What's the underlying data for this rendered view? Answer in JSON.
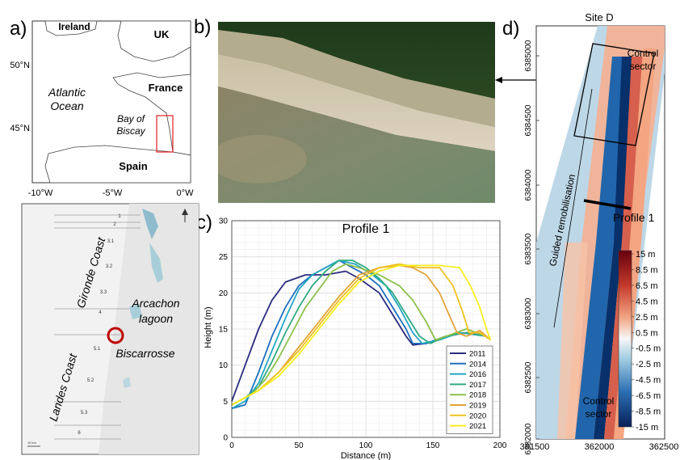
{
  "panels": {
    "a": "a)",
    "b": "b)",
    "c": "c)",
    "d": "d)"
  },
  "map_a": {
    "countries": [
      "Ireland",
      "UK",
      "France",
      "Spain"
    ],
    "sea": [
      "Atlantic",
      "Ocean"
    ],
    "bay": [
      "Bay of",
      "Biscay"
    ],
    "lat_ticks": [
      "50°N",
      "45°N"
    ],
    "lon_ticks": [
      "-10°W",
      "-5°W",
      "0°W"
    ]
  },
  "map_coast": {
    "gironde": "Gironde Coast",
    "landes": "Landes Coast",
    "lagoon": [
      "Arcachon",
      "lagoon"
    ],
    "site": "Biscarrosse",
    "sector_labels": [
      "1",
      "2",
      "3.1",
      "3.2",
      "3.3",
      "4",
      "5.1",
      "5.2",
      "5.3",
      "6"
    ],
    "scale": "10 km"
  },
  "chart_data": {
    "type": "line",
    "title": "Profile 1",
    "xlabel": "Distance (m)",
    "ylabel": "Height (m)",
    "xlim": [
      0,
      200
    ],
    "ylim": [
      0,
      30
    ],
    "xticks": [
      0,
      50,
      100,
      150,
      200
    ],
    "yticks": [
      0,
      5,
      10,
      15,
      20,
      25,
      30
    ],
    "grid": true,
    "legend_position": "bottom-right",
    "series": [
      {
        "name": "2011",
        "color": "#2b2c7d",
        "points": [
          [
            0,
            5
          ],
          [
            10,
            10
          ],
          [
            20,
            15
          ],
          [
            30,
            19
          ],
          [
            40,
            21.5
          ],
          [
            55,
            22.5
          ],
          [
            70,
            22.5
          ],
          [
            85,
            23
          ],
          [
            95,
            22
          ],
          [
            110,
            20
          ],
          [
            120,
            17
          ],
          [
            130,
            14
          ],
          [
            135,
            12.8
          ],
          [
            145,
            13
          ],
          [
            160,
            14
          ],
          [
            175,
            14.5
          ],
          [
            190,
            14
          ]
        ]
      },
      {
        "name": "2014",
        "color": "#1f6fbf",
        "points": [
          [
            0,
            4
          ],
          [
            10,
            4.5
          ],
          [
            20,
            9
          ],
          [
            30,
            14
          ],
          [
            40,
            18
          ],
          [
            50,
            21
          ],
          [
            60,
            22.5
          ],
          [
            70,
            23.5
          ],
          [
            80,
            24.5
          ],
          [
            90,
            23.5
          ],
          [
            100,
            22.5
          ],
          [
            110,
            21
          ],
          [
            120,
            18
          ],
          [
            130,
            15
          ],
          [
            135,
            13
          ],
          [
            145,
            13
          ],
          [
            160,
            14
          ],
          [
            175,
            14.5
          ],
          [
            190,
            14
          ]
        ]
      },
      {
        "name": "2016",
        "color": "#22a7c4",
        "points": [
          [
            0,
            4
          ],
          [
            10,
            5
          ],
          [
            20,
            7.5
          ],
          [
            30,
            12
          ],
          [
            40,
            16.5
          ],
          [
            50,
            20.5
          ],
          [
            60,
            22.5
          ],
          [
            70,
            23.5
          ],
          [
            80,
            24.5
          ],
          [
            92,
            24
          ],
          [
            105,
            22.5
          ],
          [
            115,
            21
          ],
          [
            125,
            18
          ],
          [
            135,
            14.5
          ],
          [
            142,
            13
          ],
          [
            155,
            13.5
          ],
          [
            170,
            14.5
          ],
          [
            190,
            14
          ]
        ]
      },
      {
        "name": "2017",
        "color": "#2faa83",
        "points": [
          [
            0,
            4.5
          ],
          [
            10,
            5.5
          ],
          [
            20,
            7
          ],
          [
            30,
            10.5
          ],
          [
            40,
            14.5
          ],
          [
            50,
            18
          ],
          [
            60,
            21
          ],
          [
            70,
            23
          ],
          [
            80,
            24.5
          ],
          [
            90,
            24.5
          ],
          [
            100,
            23.5
          ],
          [
            110,
            22
          ],
          [
            120,
            20
          ],
          [
            130,
            17
          ],
          [
            140,
            14
          ],
          [
            148,
            13
          ],
          [
            160,
            14
          ],
          [
            175,
            14.5
          ],
          [
            190,
            14
          ]
        ]
      },
      {
        "name": "2018",
        "color": "#8dc04a",
        "points": [
          [
            0,
            4.5
          ],
          [
            15,
            6
          ],
          [
            25,
            8
          ],
          [
            35,
            11
          ],
          [
            45,
            14.5
          ],
          [
            55,
            18
          ],
          [
            65,
            20.5
          ],
          [
            75,
            23
          ],
          [
            85,
            24
          ],
          [
            95,
            23.5
          ],
          [
            110,
            22.5
          ],
          [
            125,
            21
          ],
          [
            135,
            19
          ],
          [
            145,
            16
          ],
          [
            152,
            13.5
          ],
          [
            160,
            14
          ],
          [
            175,
            15
          ],
          [
            190,
            14
          ]
        ]
      },
      {
        "name": "2019",
        "color": "#e3a33a",
        "points": [
          [
            0,
            4.5
          ],
          [
            20,
            6.5
          ],
          [
            35,
            9
          ],
          [
            50,
            12.5
          ],
          [
            65,
            16
          ],
          [
            80,
            19.5
          ],
          [
            95,
            22.5
          ],
          [
            110,
            23.5
          ],
          [
            125,
            23.8
          ],
          [
            135,
            23.5
          ],
          [
            145,
            22.5
          ],
          [
            155,
            20
          ],
          [
            162,
            17
          ],
          [
            168,
            14.5
          ],
          [
            175,
            14
          ],
          [
            185,
            14.8
          ],
          [
            193,
            13.5
          ]
        ]
      },
      {
        "name": "2020",
        "color": "#eec21f",
        "points": [
          [
            0,
            4.5
          ],
          [
            20,
            6.5
          ],
          [
            35,
            9
          ],
          [
            50,
            12
          ],
          [
            65,
            15.5
          ],
          [
            80,
            19
          ],
          [
            95,
            22
          ],
          [
            110,
            23.5
          ],
          [
            125,
            24
          ],
          [
            140,
            23.5
          ],
          [
            155,
            23.5
          ],
          [
            165,
            21
          ],
          [
            172,
            17.5
          ],
          [
            177,
            14.5
          ],
          [
            185,
            14.5
          ],
          [
            193,
            13.5
          ]
        ]
      },
      {
        "name": "2021",
        "color": "#f7ee1f",
        "points": [
          [
            0,
            4.5
          ],
          [
            20,
            6.5
          ],
          [
            35,
            8.5
          ],
          [
            50,
            11.5
          ],
          [
            65,
            15
          ],
          [
            80,
            18.5
          ],
          [
            95,
            21.5
          ],
          [
            110,
            23
          ],
          [
            125,
            23.8
          ],
          [
            140,
            23.8
          ],
          [
            155,
            23.8
          ],
          [
            170,
            23.5
          ],
          [
            178,
            21
          ],
          [
            185,
            18
          ],
          [
            190,
            15
          ],
          [
            193,
            13.5
          ]
        ]
      }
    ]
  },
  "map_d": {
    "title": "Site D",
    "control_top": [
      "Control",
      "sector"
    ],
    "control_bottom": [
      "Control",
      "sector"
    ],
    "guided": "Guided remobilisation",
    "profile": "Profile 1",
    "yticks": [
      "6385000",
      "6384500",
      "6384000",
      "6383500",
      "6383000",
      "6382500",
      "6382000"
    ],
    "xticks": [
      "361500",
      "362000",
      "362500"
    ],
    "colorbar": [
      "15 m",
      "8.5 m",
      "6.5 m",
      "4.5 m",
      "2.5 m",
      "0.5 m",
      "-0.5 m",
      "-2.5 m",
      "-4.5 m",
      "-6.5 m",
      "-8.5 m",
      "-15 m"
    ]
  }
}
